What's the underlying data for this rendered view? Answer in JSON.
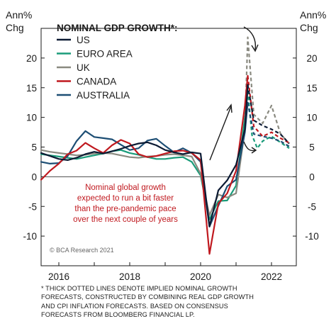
{
  "chart_data": {
    "type": "line",
    "title": "",
    "xlabel": "",
    "ylabel_left": "Ann% Chg",
    "ylabel_right": "Ann% Chg",
    "ylim": [
      -15,
      25
    ],
    "xlim": [
      2015.5,
      2022.7
    ],
    "y_ticks": [
      -10,
      -5,
      0,
      5,
      10,
      15,
      20
    ],
    "x_ticks": [
      2016,
      2018,
      2020,
      2022
    ],
    "grid": false,
    "legend": {
      "title": "NOMINAL GDP GROWTH*:",
      "placement": "top-left",
      "entries": [
        "US",
        "EURO AREA",
        "UK",
        "CANADA",
        "AUSTRALIA"
      ]
    },
    "series": [
      {
        "name": "US",
        "color": "#0b1a33",
        "actual": [
          [
            2015.5,
            4.0
          ],
          [
            2015.75,
            3.5
          ],
          [
            2016,
            3.0
          ],
          [
            2016.25,
            2.8
          ],
          [
            2016.5,
            3.2
          ],
          [
            2016.75,
            3.8
          ],
          [
            2017,
            4.2
          ],
          [
            2017.25,
            3.9
          ],
          [
            2017.5,
            4.3
          ],
          [
            2017.75,
            4.7
          ],
          [
            2018,
            5.2
          ],
          [
            2018.25,
            5.6
          ],
          [
            2018.5,
            5.8
          ],
          [
            2018.75,
            5.3
          ],
          [
            2019,
            4.5
          ],
          [
            2019.25,
            4.1
          ],
          [
            2019.5,
            3.8
          ],
          [
            2019.75,
            4.1
          ],
          [
            2020,
            3.9
          ],
          [
            2020.25,
            -8.4
          ],
          [
            2020.5,
            -2.3
          ],
          [
            2020.75,
            -0.6
          ],
          [
            2021,
            2.0
          ],
          [
            2021.25,
            8.0
          ],
          [
            2021.33,
            15.5
          ]
        ],
        "forecast": [
          [
            2021.33,
            15.5
          ],
          [
            2021.5,
            9.5
          ],
          [
            2021.75,
            8.6
          ],
          [
            2022,
            8.0
          ],
          [
            2022.25,
            7.2
          ],
          [
            2022.5,
            5.6
          ]
        ]
      },
      {
        "name": "EURO AREA",
        "color": "#1a9c7a",
        "actual": [
          [
            2015.5,
            3.8
          ],
          [
            2015.75,
            3.6
          ],
          [
            2016,
            3.4
          ],
          [
            2016.25,
            3.2
          ],
          [
            2016.5,
            3.0
          ],
          [
            2016.75,
            3.3
          ],
          [
            2017,
            3.6
          ],
          [
            2017.25,
            3.9
          ],
          [
            2017.5,
            4.3
          ],
          [
            2017.75,
            4.5
          ],
          [
            2018,
            4.0
          ],
          [
            2018.25,
            3.7
          ],
          [
            2018.5,
            3.3
          ],
          [
            2018.75,
            3.0
          ],
          [
            2019,
            3.0
          ],
          [
            2019.25,
            3.2
          ],
          [
            2019.5,
            3.3
          ],
          [
            2019.75,
            2.5
          ],
          [
            2020,
            0.2
          ],
          [
            2020.25,
            -7.2
          ],
          [
            2020.5,
            -4.1
          ],
          [
            2020.75,
            -4.0
          ],
          [
            2021,
            -1.5
          ],
          [
            2021.25,
            10.0
          ],
          [
            2021.33,
            14.5
          ]
        ],
        "forecast": [
          [
            2021.33,
            14.5
          ],
          [
            2021.45,
            7.0
          ],
          [
            2021.6,
            4.8
          ],
          [
            2021.75,
            6.0
          ],
          [
            2022,
            6.8
          ],
          [
            2022.25,
            5.8
          ],
          [
            2022.5,
            4.8
          ]
        ]
      },
      {
        "name": "UK",
        "color": "#8a8a80",
        "actual": [
          [
            2015.5,
            4.5
          ],
          [
            2015.75,
            4.2
          ],
          [
            2016,
            4.0
          ],
          [
            2016.25,
            3.8
          ],
          [
            2016.5,
            3.6
          ],
          [
            2016.75,
            3.7
          ],
          [
            2017,
            3.9
          ],
          [
            2017.25,
            4.0
          ],
          [
            2017.5,
            3.9
          ],
          [
            2017.75,
            3.6
          ],
          [
            2018,
            3.3
          ],
          [
            2018.25,
            3.2
          ],
          [
            2018.5,
            3.4
          ],
          [
            2018.75,
            3.5
          ],
          [
            2019,
            3.7
          ],
          [
            2019.25,
            3.8
          ],
          [
            2019.5,
            3.6
          ],
          [
            2019.75,
            3.4
          ],
          [
            2020,
            0.5
          ],
          [
            2020.25,
            -6.5
          ],
          [
            2020.5,
            -3.0
          ],
          [
            2020.75,
            -3.5
          ],
          [
            2021,
            -2.8
          ],
          [
            2021.25,
            8.0
          ]
        ],
        "forecast": [
          [
            2021.25,
            8.0
          ],
          [
            2021.33,
            23.5
          ],
          [
            2021.5,
            10.5
          ],
          [
            2021.75,
            9.0
          ],
          [
            2022,
            12.0
          ],
          [
            2022.25,
            7.3
          ],
          [
            2022.5,
            5.5
          ]
        ]
      },
      {
        "name": "CANADA",
        "color": "#c0191f",
        "actual": [
          [
            2015.5,
            -0.5
          ],
          [
            2015.75,
            1.0
          ],
          [
            2016,
            2.2
          ],
          [
            2016.25,
            3.8
          ],
          [
            2016.5,
            4.4
          ],
          [
            2016.75,
            5.7
          ],
          [
            2017,
            4.8
          ],
          [
            2017.25,
            4.0
          ],
          [
            2017.5,
            5.3
          ],
          [
            2017.75,
            6.2
          ],
          [
            2018,
            5.6
          ],
          [
            2018.25,
            3.8
          ],
          [
            2018.5,
            3.3
          ],
          [
            2018.75,
            3.5
          ],
          [
            2019,
            3.9
          ],
          [
            2019.25,
            4.3
          ],
          [
            2019.5,
            4.4
          ],
          [
            2019.75,
            4.0
          ],
          [
            2020,
            2.8
          ],
          [
            2020.25,
            -13.0
          ],
          [
            2020.5,
            -4.5
          ],
          [
            2020.75,
            -2.8
          ],
          [
            2021,
            1.0
          ],
          [
            2021.25,
            12.0
          ],
          [
            2021.33,
            17.0
          ]
        ],
        "forecast": [
          [
            2021.33,
            17.0
          ],
          [
            2021.5,
            8.5
          ],
          [
            2021.75,
            6.8
          ],
          [
            2022,
            7.5
          ],
          [
            2022.25,
            6.5
          ],
          [
            2022.5,
            5.7
          ]
        ]
      },
      {
        "name": "AUSTRALIA",
        "color": "#1d4e74",
        "actual": [
          [
            2015.5,
            2.5
          ],
          [
            2015.75,
            2.2
          ],
          [
            2016,
            2.3
          ],
          [
            2016.25,
            3.5
          ],
          [
            2016.5,
            6.0
          ],
          [
            2016.75,
            7.7
          ],
          [
            2017,
            6.7
          ],
          [
            2017.25,
            6.5
          ],
          [
            2017.5,
            6.3
          ],
          [
            2017.75,
            5.4
          ],
          [
            2018,
            4.5
          ],
          [
            2018.25,
            4.8
          ],
          [
            2018.5,
            6.1
          ],
          [
            2018.75,
            6.4
          ],
          [
            2019,
            5.2
          ],
          [
            2019.25,
            4.1
          ],
          [
            2019.5,
            4.8
          ],
          [
            2019.75,
            4.0
          ],
          [
            2020,
            2.5
          ],
          [
            2020.25,
            -8.4
          ],
          [
            2020.5,
            -4.9
          ],
          [
            2020.75,
            -1.6
          ],
          [
            2021,
            -0.5
          ],
          [
            2021.25,
            7.5
          ],
          [
            2021.33,
            12.5
          ]
        ],
        "forecast": [
          [
            2021.33,
            12.5
          ],
          [
            2021.5,
            7.2
          ],
          [
            2021.75,
            6.8
          ],
          [
            2022,
            6.5
          ],
          [
            2022.25,
            6.0
          ],
          [
            2022.5,
            5.1
          ]
        ]
      }
    ],
    "annotation": {
      "lines": [
        "Nominal global growth",
        "expected to run a bit faster",
        "than the pre-pandemic pace",
        "over the next couple of years"
      ],
      "color": "#c0191f"
    },
    "watermark": "© BCA Research 2021",
    "footnote": [
      "* THICK DOTTED LINES DENOTE IMPLIED NOMINAL GROWTH",
      "FORECASTS, CONSTRUCTED BY COMBINING REAL GDP GROWTH",
      "AND CPI INFLATION FORECASTS. BASED ON CONSENSUS",
      "FORECASTS FROM BLOOMBERG FINANCIAL LP."
    ]
  }
}
